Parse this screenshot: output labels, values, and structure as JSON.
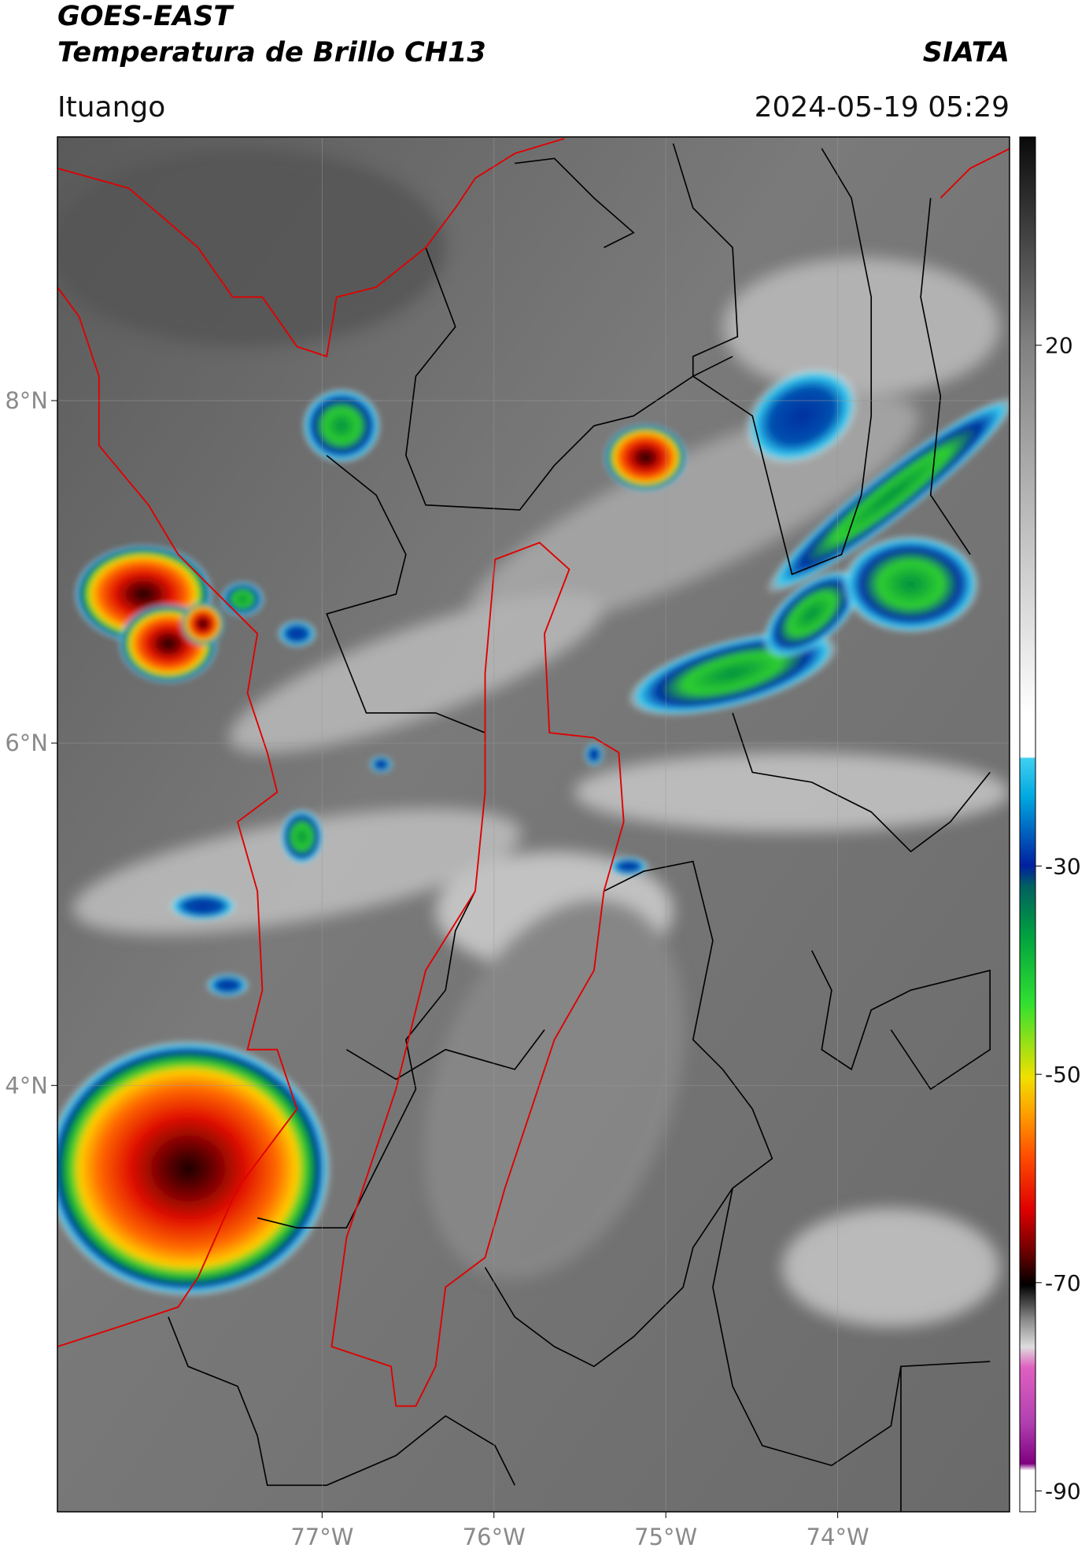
{
  "chart_data": {
    "type": "map",
    "title": "GOES-EAST",
    "subtitle": "Temperatura de Brillo CH13",
    "source": "SIATA",
    "region": "Ituango",
    "timestamp": "2024-05-19 05:29",
    "xlim": [
      -78.54,
      -73.0
    ],
    "ylim": [
      1.51,
      9.54
    ],
    "xticks": [
      {
        "value": -77,
        "label": "77°W"
      },
      {
        "value": -76,
        "label": "76°W"
      },
      {
        "value": -75,
        "label": "75°W"
      },
      {
        "value": -74,
        "label": "74°W"
      }
    ],
    "yticks": [
      {
        "value": 8,
        "label": "8°N"
      },
      {
        "value": 6,
        "label": "6°N"
      },
      {
        "value": 4,
        "label": "4°N"
      }
    ],
    "grid": true,
    "colorbar": {
      "clim": [
        -92,
        40
      ],
      "ticks": [
        20,
        -30,
        -50,
        -70,
        -90
      ]
    }
  }
}
